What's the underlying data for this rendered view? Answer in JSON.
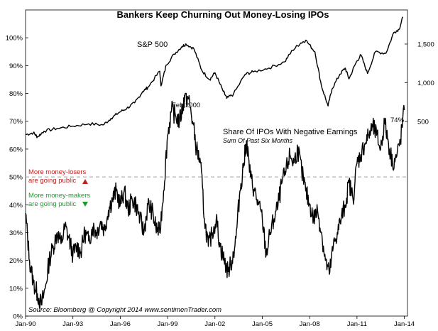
{
  "chart_data": {
    "type": "line",
    "title": "Bankers Keep Churning Out Money-Losing IPOs",
    "x_ticks": [
      "Jan-90",
      "Jan-93",
      "Jan-96",
      "Jan-99",
      "Jan-02",
      "Jan-05",
      "Jan-08",
      "Jan-11",
      "Jan-14"
    ],
    "left_axis": {
      "ticks": [
        "0%",
        "10%",
        "20%",
        "30%",
        "40%",
        "50%",
        "60%",
        "70%",
        "80%",
        "90%",
        "100%"
      ],
      "ylim": [
        0,
        110
      ]
    },
    "right_axis": {
      "ticks": [
        "500",
        "1,000",
        "1,500"
      ]
    },
    "grid": false,
    "reference_line": {
      "value": 50
    },
    "series": [
      {
        "name": "S&P 500",
        "axis": "right",
        "points": [
          [
            "1990-01",
            330
          ],
          [
            "1990-07",
            355
          ],
          [
            "1990-10",
            300
          ],
          [
            "1991-03",
            375
          ],
          [
            "1992-01",
            410
          ],
          [
            "1993-01",
            440
          ],
          [
            "1994-01",
            470
          ],
          [
            "1994-12",
            455
          ],
          [
            "1995-06",
            540
          ],
          [
            "1995-12",
            615
          ],
          [
            "1996-06",
            670
          ],
          [
            "1996-12",
            740
          ],
          [
            "1997-06",
            885
          ],
          [
            "1997-10",
            940
          ],
          [
            "1998-07",
            1150
          ],
          [
            "1998-08",
            960
          ],
          [
            "1998-12",
            1230
          ],
          [
            "1999-06",
            1370
          ],
          [
            "1999-12",
            1470
          ],
          [
            "2000-03",
            1500
          ],
          [
            "2000-09",
            1440
          ],
          [
            "2001-03",
            1160
          ],
          [
            "2001-09",
            1040
          ],
          [
            "2002-01",
            1130
          ],
          [
            "2002-07",
            900
          ],
          [
            "2002-10",
            800
          ],
          [
            "2003-03",
            850
          ],
          [
            "2003-12",
            1110
          ],
          [
            "2004-06",
            1140
          ],
          [
            "2005-06",
            1190
          ],
          [
            "2006-06",
            1270
          ],
          [
            "2006-12",
            1420
          ],
          [
            "2007-06",
            1510
          ],
          [
            "2007-10",
            1550
          ],
          [
            "2008-05",
            1400
          ],
          [
            "2008-10",
            960
          ],
          [
            "2009-03",
            700
          ],
          [
            "2009-06",
            920
          ],
          [
            "2009-12",
            1110
          ],
          [
            "2010-04",
            1190
          ],
          [
            "2010-07",
            1050
          ],
          [
            "2010-12",
            1250
          ],
          [
            "2011-04",
            1360
          ],
          [
            "2011-09",
            1120
          ],
          [
            "2012-03",
            1400
          ],
          [
            "2012-11",
            1380
          ],
          [
            "2013-05",
            1650
          ],
          [
            "2013-09",
            1690
          ],
          [
            "2013-12",
            1850
          ]
        ]
      },
      {
        "name": "Share Of IPOs With Negative Earnings",
        "subtitle": "Sum Of Past Six Months",
        "axis": "left",
        "points": [
          [
            "1990-01",
            37
          ],
          [
            "1990-04",
            20
          ],
          [
            "1990-07",
            12
          ],
          [
            "1990-10",
            8
          ],
          [
            "1991-01",
            4
          ],
          [
            "1991-04",
            10
          ],
          [
            "1991-07",
            20
          ],
          [
            "1991-10",
            25
          ],
          [
            "1992-01",
            30
          ],
          [
            "1992-04",
            26
          ],
          [
            "1992-07",
            32
          ],
          [
            "1992-10",
            28
          ],
          [
            "1993-01",
            22
          ],
          [
            "1993-04",
            25
          ],
          [
            "1993-07",
            23
          ],
          [
            "1993-10",
            30
          ],
          [
            "1994-01",
            27
          ],
          [
            "1994-04",
            32
          ],
          [
            "1994-07",
            30
          ],
          [
            "1994-10",
            34
          ],
          [
            "1995-01",
            31
          ],
          [
            "1995-04",
            38
          ],
          [
            "1995-07",
            42
          ],
          [
            "1995-10",
            45
          ],
          [
            "1996-01",
            40
          ],
          [
            "1996-04",
            45
          ],
          [
            "1996-07",
            38
          ],
          [
            "1996-10",
            42
          ],
          [
            "1997-01",
            40
          ],
          [
            "1997-04",
            35
          ],
          [
            "1997-07",
            30
          ],
          [
            "1997-10",
            40
          ],
          [
            "1998-01",
            38
          ],
          [
            "1998-04",
            32
          ],
          [
            "1998-07",
            30
          ],
          [
            "1998-10",
            45
          ],
          [
            "1999-01",
            65
          ],
          [
            "1999-04",
            74
          ],
          [
            "1999-07",
            72
          ],
          [
            "1999-10",
            70
          ],
          [
            "2000-01",
            76
          ],
          [
            "2000-02",
            79
          ],
          [
            "2000-05",
            78
          ],
          [
            "2000-08",
            70
          ],
          [
            "2000-11",
            60
          ],
          [
            "2001-02",
            55
          ],
          [
            "2001-05",
            35
          ],
          [
            "2001-08",
            25
          ],
          [
            "2001-11",
            30
          ],
          [
            "2002-02",
            35
          ],
          [
            "2002-05",
            25
          ],
          [
            "2002-08",
            20
          ],
          [
            "2002-11",
            16
          ],
          [
            "2003-02",
            20
          ],
          [
            "2003-05",
            28
          ],
          [
            "2003-08",
            45
          ],
          [
            "2003-11",
            55
          ],
          [
            "2004-01",
            63
          ],
          [
            "2004-04",
            50
          ],
          [
            "2004-07",
            45
          ],
          [
            "2004-10",
            40
          ],
          [
            "2005-01",
            35
          ],
          [
            "2005-04",
            22
          ],
          [
            "2005-07",
            30
          ],
          [
            "2005-10",
            35
          ],
          [
            "2006-01",
            40
          ],
          [
            "2006-04",
            48
          ],
          [
            "2006-07",
            52
          ],
          [
            "2006-10",
            58
          ],
          [
            "2007-01",
            55
          ],
          [
            "2007-04",
            60
          ],
          [
            "2007-07",
            52
          ],
          [
            "2007-10",
            45
          ],
          [
            "2008-01",
            40
          ],
          [
            "2008-04",
            35
          ],
          [
            "2008-07",
            38
          ],
          [
            "2008-10",
            30
          ],
          [
            "2009-01",
            20
          ],
          [
            "2009-04",
            15
          ],
          [
            "2009-07",
            25
          ],
          [
            "2009-10",
            30
          ],
          [
            "2010-01",
            35
          ],
          [
            "2010-04",
            40
          ],
          [
            "2010-07",
            48
          ],
          [
            "2010-10",
            42
          ],
          [
            "2011-01",
            55
          ],
          [
            "2011-04",
            58
          ],
          [
            "2011-07",
            62
          ],
          [
            "2011-10",
            65
          ],
          [
            "2012-01",
            68
          ],
          [
            "2012-04",
            65
          ],
          [
            "2012-07",
            60
          ],
          [
            "2012-10",
            70
          ],
          [
            "2013-01",
            62
          ],
          [
            "2013-04",
            55
          ],
          [
            "2013-07",
            57
          ],
          [
            "2013-10",
            63
          ],
          [
            "2014-01",
            74
          ]
        ]
      }
    ],
    "annotations": [
      {
        "text": "Feb 2000",
        "x": "2000-02",
        "y": 79
      },
      {
        "text": "74%",
        "x": "2014-01",
        "y": 74
      }
    ]
  },
  "labels": {
    "sp500": "S&P 500",
    "ipo_series": "Share Of IPOs With Negative Earnings",
    "ipo_sub": "Sum Of Past Six Months",
    "feb2000": "Feb 2000",
    "pct74": "74%",
    "losers_1": "More money-losers",
    "losers_2": "are going public",
    "makers_1": "More money-makers",
    "makers_2": "are going public",
    "source": "Source:  Bloomberg   @ Copyright 2014   www.sentimenTrader.com"
  },
  "colors": {
    "line": "#000000",
    "reference": "#b3b3b3",
    "up_arrow": "#c0201f",
    "down_arrow": "#1f9a2f"
  }
}
